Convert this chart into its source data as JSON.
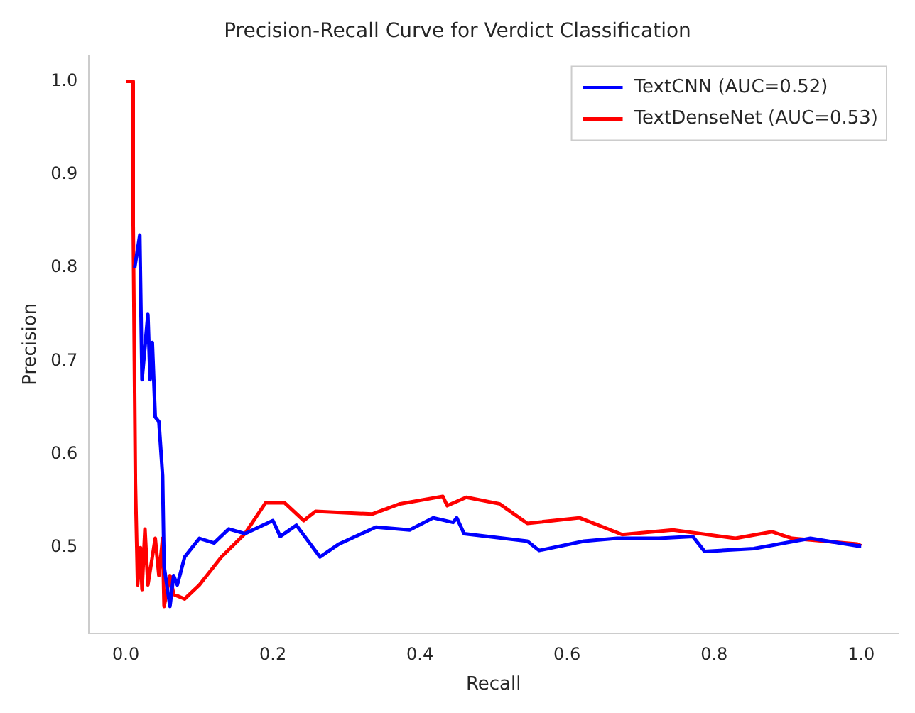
{
  "chart_data": {
    "type": "line",
    "title": "Precision-Recall Curve for Verdict Classification",
    "xlabel": "Recall",
    "ylabel": "Precision",
    "xlim": [
      -0.05,
      1.05
    ],
    "ylim": [
      0.408,
      1.028
    ],
    "xticks": [
      {
        "value": 0,
        "label": "0.0"
      },
      0.2,
      0.4,
      0.6,
      0.8,
      {
        "value": 1,
        "label": "1.0"
      }
    ],
    "yticks": [
      0.5,
      0.6,
      0.7,
      0.8,
      0.9,
      {
        "value": 1,
        "label": "1.0"
      }
    ],
    "grid": false,
    "legend": "top right",
    "marker": "none",
    "line_style": "solid",
    "series": [
      {
        "name": "TextCNN (AUC=0.52)",
        "color": "#0000ff",
        "x": [
          0.012,
          0.019,
          0.022,
          0.03,
          0.033,
          0.036,
          0.04,
          0.045,
          0.05,
          0.052,
          0.06,
          0.065,
          0.07,
          0.08,
          0.09,
          0.1,
          0.12,
          0.14,
          0.162,
          0.2,
          0.21,
          0.232,
          0.264,
          0.29,
          0.34,
          0.386,
          0.418,
          0.445,
          0.45,
          0.46,
          0.546,
          0.562,
          0.623,
          0.668,
          0.725,
          0.771,
          0.787,
          0.854,
          0.931,
          0.994,
          1.0
        ],
        "values": [
          0.8,
          0.835,
          0.68,
          0.75,
          0.68,
          0.72,
          0.64,
          0.635,
          0.577,
          0.48,
          0.437,
          0.47,
          0.46,
          0.49,
          0.5,
          0.51,
          0.505,
          0.52,
          0.515,
          0.529,
          0.512,
          0.524,
          0.49,
          0.504,
          0.522,
          0.519,
          0.532,
          0.527,
          0.532,
          0.515,
          0.507,
          0.497,
          0.507,
          0.51,
          0.51,
          0.512,
          0.496,
          0.499,
          0.51,
          0.502,
          0.502
        ]
      },
      {
        "name": "TextDenseNet (AUC=0.53)",
        "color": "#ff0000",
        "x": [
          0,
          0.01,
          0.01,
          0.011,
          0.013,
          0.016,
          0.02,
          0.022,
          0.026,
          0.03,
          0.04,
          0.045,
          0.05,
          0.052,
          0.06,
          0.065,
          0.08,
          0.1,
          0.13,
          0.162,
          0.19,
          0.216,
          0.242,
          0.258,
          0.335,
          0.373,
          0.431,
          0.437,
          0.463,
          0.508,
          0.546,
          0.617,
          0.675,
          0.744,
          0.829,
          0.879,
          0.906,
          0.994,
          1.0
        ],
        "values": [
          1,
          1,
          0.85,
          0.76,
          0.57,
          0.46,
          0.5,
          0.455,
          0.52,
          0.46,
          0.51,
          0.47,
          0.51,
          0.437,
          0.47,
          0.45,
          0.445,
          0.46,
          0.49,
          0.515,
          0.548,
          0.548,
          0.529,
          0.539,
          0.536,
          0.547,
          0.555,
          0.545,
          0.554,
          0.547,
          0.526,
          0.532,
          0.514,
          0.519,
          0.51,
          0.517,
          0.51,
          0.504,
          0.502
        ]
      }
    ]
  }
}
